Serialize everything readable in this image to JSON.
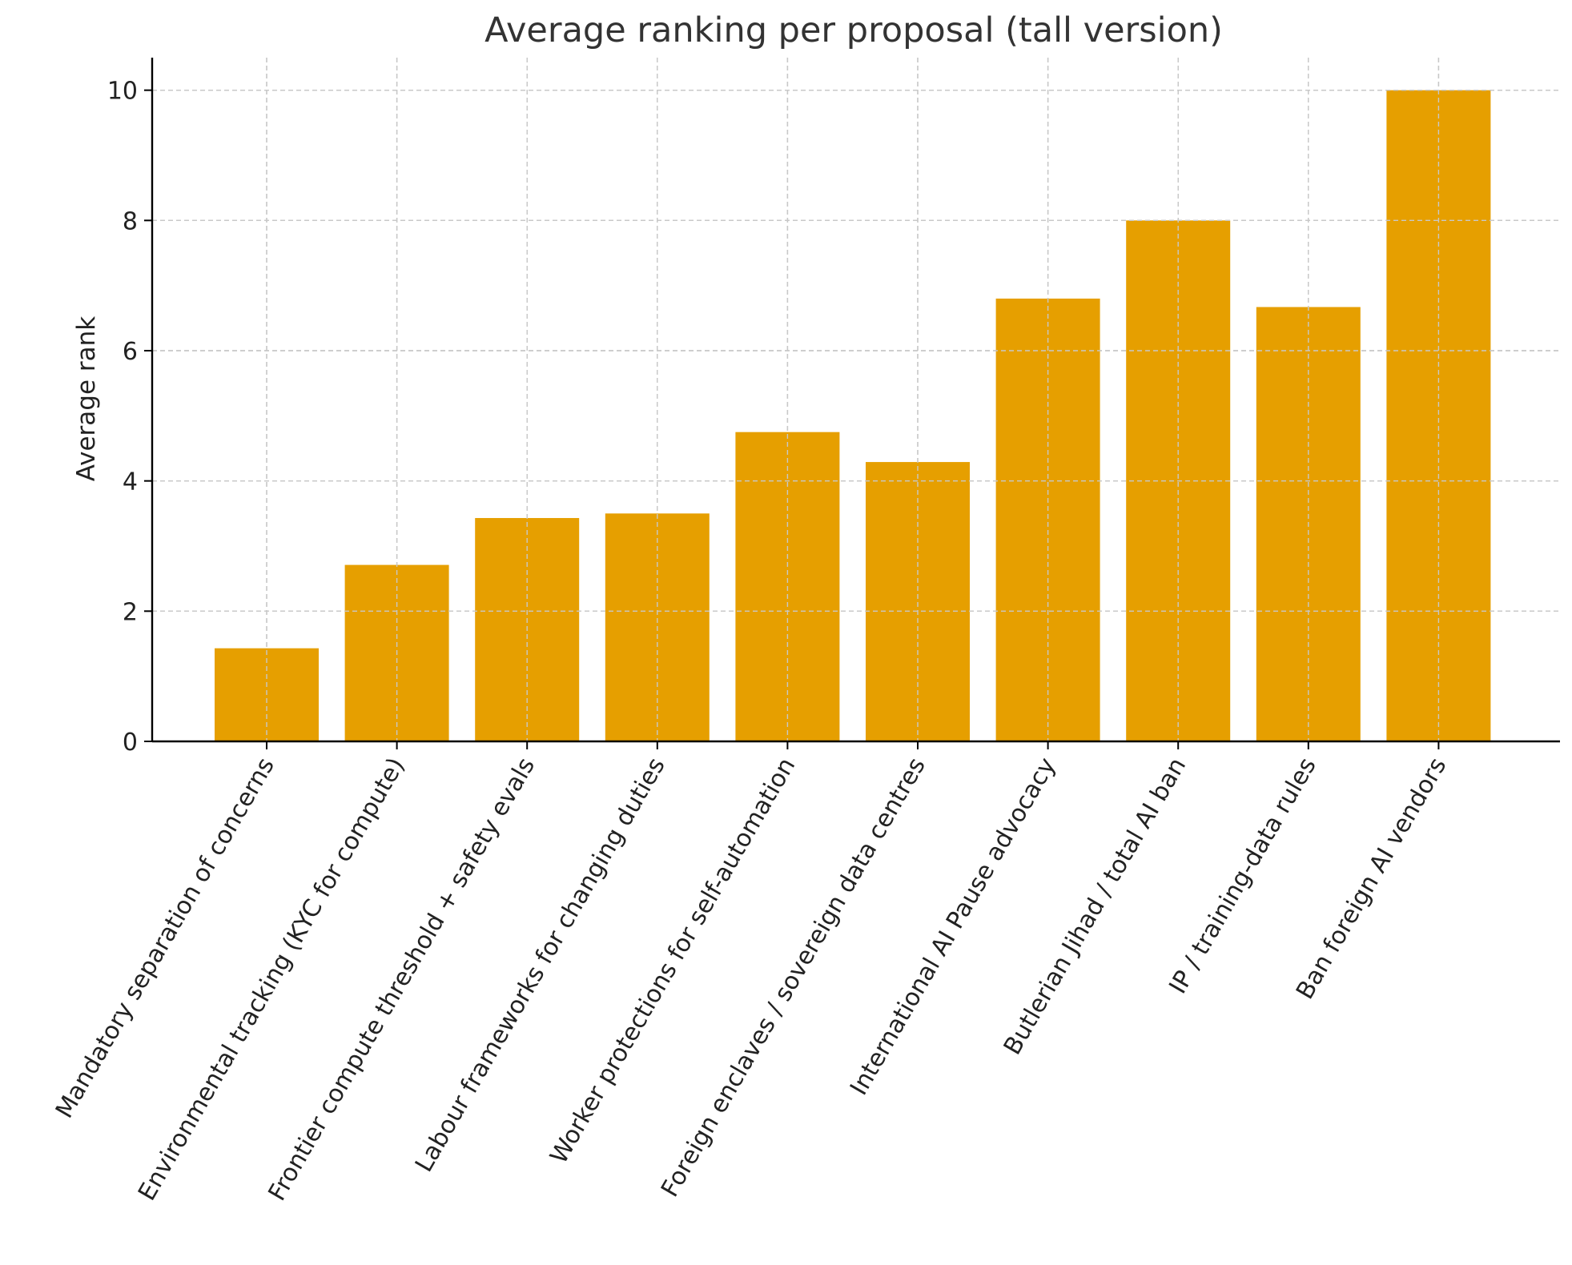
{
  "chart_data": {
    "type": "bar",
    "title": "Average ranking per proposal (tall version)",
    "xlabel": "",
    "ylabel": "Average rank",
    "ylim": [
      0,
      10.5
    ],
    "yticks": [
      0,
      2,
      4,
      6,
      8,
      10
    ],
    "grid": true,
    "bar_color": "#E69F00",
    "categories": [
      "Mandatory separation of concerns",
      "Environmental tracking (KYC for compute)",
      "Frontier compute threshold + safety evals",
      "Labour frameworks for changing duties",
      "Worker protections for self-automation",
      "Foreign enclaves / sovereign data centres",
      "International AI Pause advocacy",
      "Butlerian Jihad / total AI ban",
      "IP / training-data rules",
      "Ban foreign AI vendors"
    ],
    "values": [
      1.43,
      2.71,
      3.43,
      3.5,
      4.75,
      4.29,
      6.8,
      8.0,
      6.67,
      10.0
    ]
  }
}
